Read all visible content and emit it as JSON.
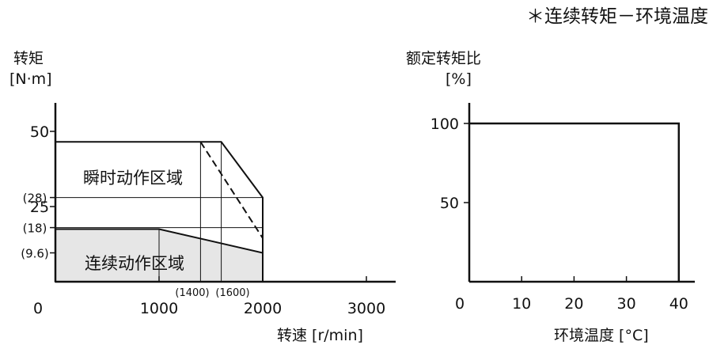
{
  "note": "＊连续转矩－环境温度",
  "chart_data": [
    {
      "type": "area",
      "ylabel_line1": "转矩",
      "ylabel_line2": "[N·m]",
      "xlabel": "转速 [r/min]",
      "xlim": [
        0,
        3200
      ],
      "ylim": [
        0,
        55
      ],
      "x_ticks": [
        {
          "value": 0,
          "label": "0"
        },
        {
          "value": 1000,
          "label": "1000"
        },
        {
          "value": 2000,
          "label": "2000"
        },
        {
          "value": 3000,
          "label": "3000"
        }
      ],
      "x_paren_ticks": [
        {
          "value": 1400,
          "label": "(1400)"
        },
        {
          "value": 1600,
          "label": "(1600)"
        }
      ],
      "y_ticks": [
        {
          "value": 50,
          "label": "50"
        },
        {
          "value": 25,
          "label": "25"
        }
      ],
      "y_paren_ticks": [
        {
          "value": 28,
          "label": "(28)"
        },
        {
          "value": 18,
          "label": "(18)"
        },
        {
          "value": 9.6,
          "label": "(9.6)"
        }
      ],
      "regions": [
        {
          "name": "瞬时动作区域",
          "x": [
            0,
            1600,
            2000,
            2000,
            0
          ],
          "y": [
            46.5,
            46.5,
            28,
            0,
            0
          ],
          "fill": "none"
        },
        {
          "name": "连续动作区域",
          "x": [
            0,
            1000,
            2000,
            2000,
            0
          ],
          "y": [
            17.5,
            17.5,
            9.6,
            0,
            0
          ],
          "fill": "#e6e6e6"
        }
      ],
      "dashed_line": {
        "x": [
          1400,
          2000
        ],
        "y": [
          46.5,
          14.5
        ]
      },
      "grid_v": [
        1000,
        1400,
        1600
      ],
      "grid_h": [
        28,
        18
      ]
    },
    {
      "type": "line",
      "ylabel_line1": "额定转矩比",
      "ylabel_line2": "[%]",
      "xlabel": "环境温度 [°C]",
      "xlim": [
        0,
        42
      ],
      "ylim": [
        0,
        110
      ],
      "x_ticks": [
        {
          "value": 0,
          "label": "0"
        },
        {
          "value": 10,
          "label": "10"
        },
        {
          "value": 20,
          "label": "20"
        },
        {
          "value": 30,
          "label": "30"
        },
        {
          "value": 40,
          "label": "40"
        }
      ],
      "y_ticks": [
        {
          "value": 100,
          "label": "100"
        },
        {
          "value": 50,
          "label": "50"
        }
      ],
      "series": [
        {
          "x": [
            0,
            40,
            40
          ],
          "y": [
            100,
            100,
            0
          ]
        }
      ]
    }
  ]
}
